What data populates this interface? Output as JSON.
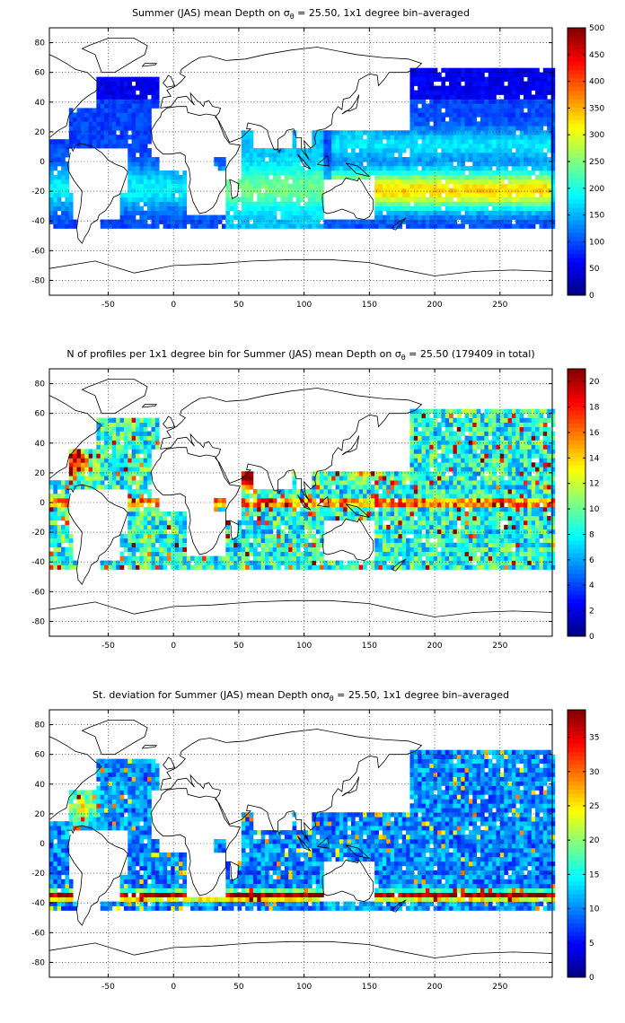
{
  "colormap": "jet",
  "colors": {
    "ocean_bg": "#ffffff",
    "axes": "#000000",
    "coast": "#000000"
  },
  "chart_data": [
    {
      "type": "heatmap",
      "title": {
        "prefix": "Summer (JAS) mean Depth on ",
        "sym": "σ",
        "sub": "θ",
        "suffix": " = 25.50, 1x1 degree bin–averaged"
      },
      "x_ticks": [
        -50,
        0,
        50,
        100,
        150,
        200,
        250
      ],
      "y_ticks": [
        80,
        60,
        40,
        20,
        0,
        -20,
        -40,
        -60,
        -80
      ],
      "xlim": [
        -95,
        290
      ],
      "ylim": [
        -90,
        90
      ],
      "grid": true,
      "colorbar": {
        "range": [
          0,
          500
        ],
        "ticks": [
          500,
          450,
          400,
          350,
          300,
          250,
          200,
          150,
          100,
          50,
          0
        ]
      },
      "field": "depth"
    },
    {
      "type": "heatmap",
      "title": {
        "prefix": "N of profiles per 1x1 degree bin for Summer (JAS) mean Depth on ",
        "sym": "σ",
        "sub": "θ",
        "suffix": " = 25.50 (179409 in total)"
      },
      "x_ticks": [
        -50,
        0,
        50,
        100,
        150,
        200,
        250
      ],
      "y_ticks": [
        80,
        60,
        40,
        20,
        0,
        -20,
        -40,
        -60,
        -80
      ],
      "xlim": [
        -95,
        290
      ],
      "ylim": [
        -90,
        90
      ],
      "grid": true,
      "colorbar": {
        "range": [
          0,
          21
        ],
        "ticks": [
          20,
          18,
          16,
          14,
          12,
          10,
          8,
          6,
          4,
          2,
          0
        ]
      },
      "field": "count"
    },
    {
      "type": "heatmap",
      "title": {
        "prefix": "St. deviation for Summer (JAS) mean Depth on",
        "sym": "σ",
        "sub": "θ",
        "suffix": " = 25.50, 1x1 degree bin–averaged"
      },
      "x_ticks": [
        -50,
        0,
        50,
        100,
        150,
        200,
        250
      ],
      "y_ticks": [
        80,
        60,
        40,
        20,
        0,
        -20,
        -40,
        -60,
        -80
      ],
      "xlim": [
        -95,
        290
      ],
      "ylim": [
        -90,
        90
      ],
      "grid": true,
      "colorbar": {
        "range": [
          0,
          39
        ],
        "ticks": [
          35,
          30,
          25,
          20,
          15,
          10,
          5,
          0
        ]
      },
      "field": "std"
    }
  ]
}
